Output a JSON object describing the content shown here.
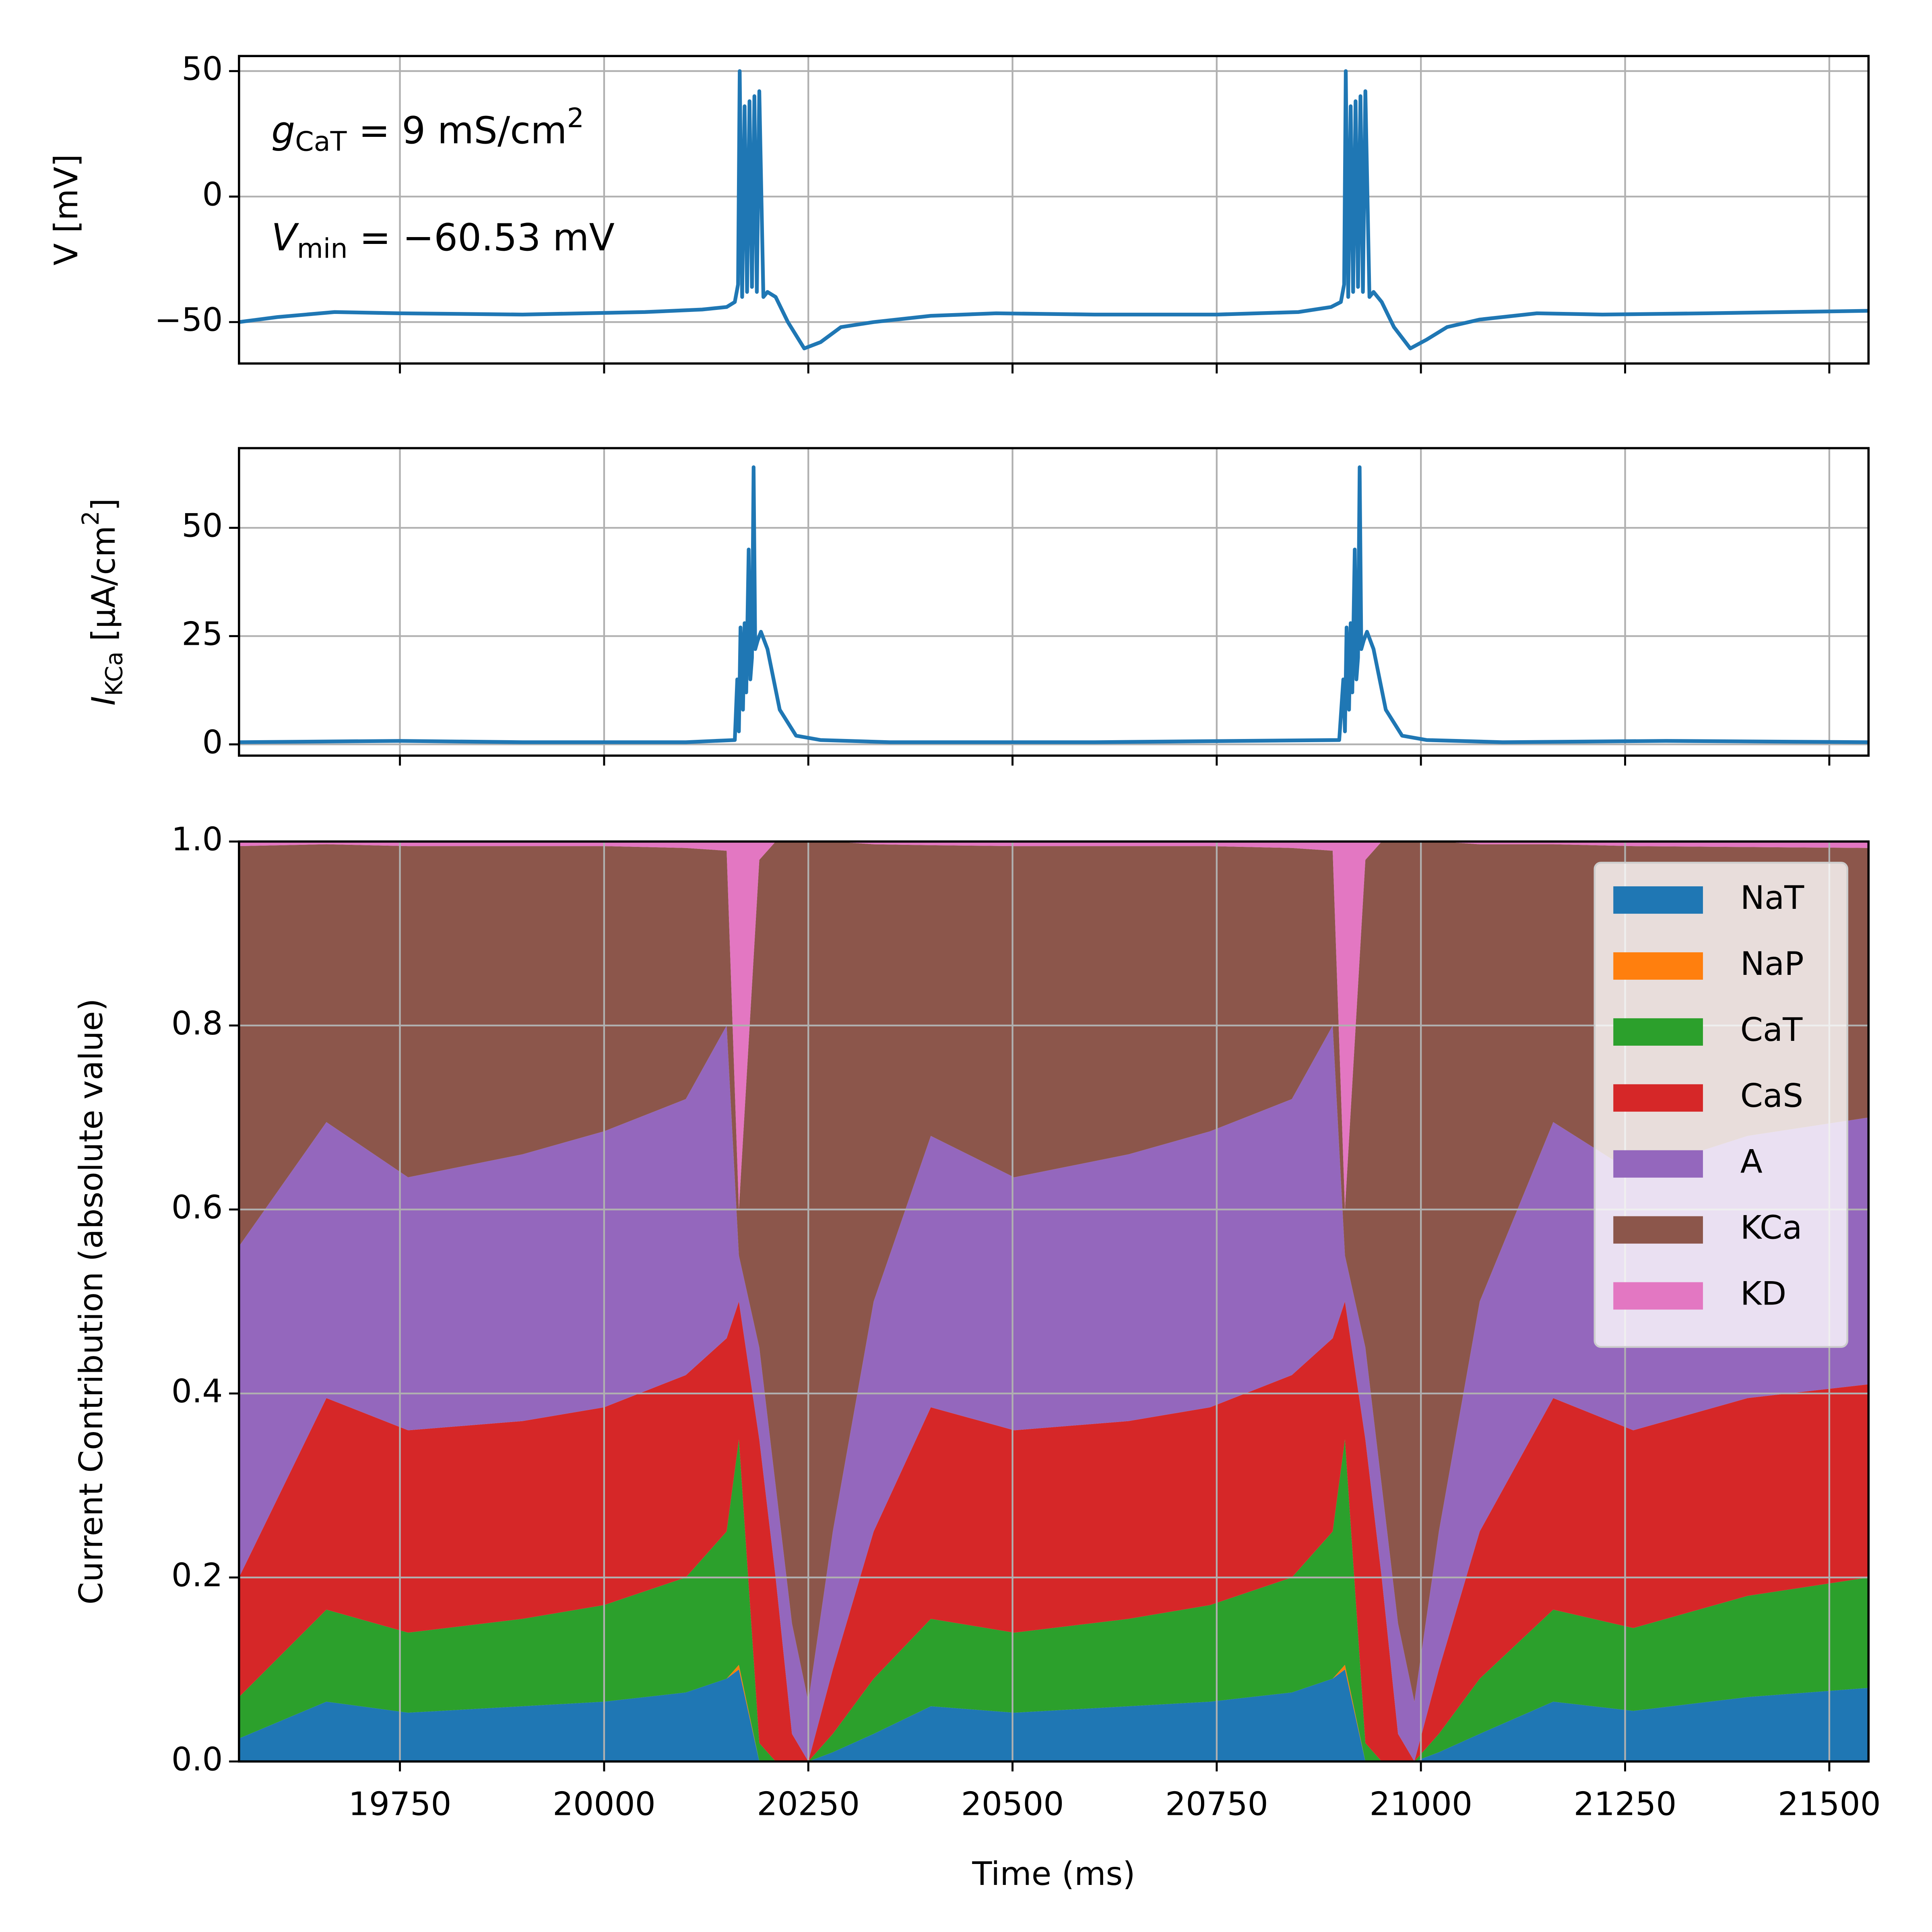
{
  "chart_data": [
    {
      "type": "line",
      "ylabel": "V [mV]",
      "color": "#1f77b4",
      "grid": true,
      "annotations": [
        [
          "g",
          "CaT",
          " = 9 mS/cm",
          "2"
        ],
        [
          "V",
          "min",
          " = −60.53 mV"
        ]
      ],
      "x": [
        19553,
        19600,
        19670,
        19750,
        19900,
        20050,
        20120,
        20150,
        20160,
        20164,
        20166,
        20169,
        20172,
        20175,
        20178,
        20181,
        20184,
        20187,
        20190,
        20195,
        20200,
        20210,
        20225,
        20245,
        20265,
        20290,
        20330,
        20400,
        20480,
        20600,
        20750,
        20850,
        20890,
        20902,
        20906,
        20908,
        20911,
        20914,
        20917,
        20920,
        20923,
        20926,
        20929,
        20932,
        20937,
        20942,
        20952,
        20967,
        20987,
        21007,
        21032,
        21072,
        21142,
        21222,
        21350,
        21548
      ],
      "values": [
        -50,
        -48,
        -46,
        -46.5,
        -47,
        -46,
        -45,
        -44,
        -42,
        -35,
        50,
        -40,
        36,
        -38,
        38,
        -36,
        40,
        -38,
        42,
        -40,
        -38,
        -40,
        -50,
        -60.5,
        -58,
        -52,
        -50,
        -47.5,
        -46.5,
        -47,
        -47,
        -46,
        -44,
        -42,
        -35,
        50,
        -40,
        36,
        -38,
        38,
        -36,
        40,
        -38,
        42,
        -40,
        -38,
        -42,
        -52,
        -60.5,
        -57,
        -52,
        -49,
        -46.5,
        -47,
        -46.5,
        -45.5
      ],
      "xlim": [
        19553,
        21548
      ],
      "xticks": [
        19750,
        20000,
        20250,
        20500,
        20750,
        21000,
        21250,
        21500
      ],
      "ylim": [
        -66.5,
        56
      ],
      "yticks": [
        {
          "value": -50,
          "label": "−50"
        },
        0,
        50
      ]
    },
    {
      "type": "line",
      "ylabel": [
        "I",
        "KCa",
        " [μA/cm",
        "2",
        "]"
      ],
      "color": "#1f77b4",
      "grid": true,
      "x": [
        19553,
        19750,
        19900,
        20100,
        20160,
        20163,
        20165,
        20167,
        20170,
        20172,
        20174,
        20177,
        20179,
        20181,
        20183,
        20185,
        20188,
        20192,
        20200,
        20215,
        20235,
        20265,
        20350,
        20600,
        20900,
        20905,
        20907,
        20909,
        20912,
        20914,
        20916,
        20919,
        20921,
        20923,
        20925,
        20927,
        20930,
        20934,
        20942,
        20957,
        20977,
        21007,
        21100,
        21300,
        21548
      ],
      "values": [
        0.5,
        0.8,
        0.5,
        0.5,
        1,
        15,
        3,
        27,
        8,
        28,
        12,
        45,
        15,
        20,
        64,
        22,
        24,
        26,
        22,
        8,
        2,
        1,
        0.5,
        0.5,
        1,
        15,
        3,
        27,
        8,
        28,
        12,
        45,
        15,
        20,
        64,
        22,
        24,
        26,
        22,
        8,
        2,
        1,
        0.5,
        0.8,
        0.5
      ],
      "xlim": [
        19553,
        21548
      ],
      "xticks": [
        19750,
        20000,
        20250,
        20500,
        20750,
        21000,
        21250,
        21500
      ],
      "ylim": [
        -2.6,
        68.4
      ],
      "yticks": [
        0,
        25,
        50
      ]
    },
    {
      "type": "stackedarea",
      "xlabel": "Time (ms)",
      "ylabel": "Current Contribution (absolute value)",
      "grid": true,
      "legend": "upper right",
      "x": [
        19553,
        19660,
        19760,
        19900,
        20000,
        20100,
        20150,
        20165,
        20190,
        20210,
        20230,
        20250,
        20280,
        20330,
        20400,
        20502,
        20642,
        20742,
        20842,
        20892,
        20907,
        20932,
        20952,
        20972,
        20992,
        21022,
        21072,
        21162,
        21260,
        21400,
        21548
      ],
      "series": [
        {
          "name": "NaT",
          "color": "#1f77b4",
          "values": [
            0.025,
            0.065,
            0.053,
            0.06,
            0.065,
            0.075,
            0.09,
            0.1,
            0,
            0,
            0,
            0,
            0.01,
            0.03,
            0.06,
            0.053,
            0.06,
            0.065,
            0.075,
            0.09,
            0.1,
            0,
            0,
            0,
            0,
            0.01,
            0.03,
            0.065,
            0.055,
            0.07,
            0.08
          ]
        },
        {
          "name": "NaP",
          "color": "#ff7f0e",
          "values": [
            0,
            0,
            0,
            0,
            0,
            0,
            0,
            0.005,
            0,
            0,
            0,
            0,
            0,
            0,
            0,
            0,
            0,
            0,
            0,
            0,
            0.005,
            0,
            0,
            0,
            0,
            0,
            0,
            0,
            0,
            0,
            0
          ]
        },
        {
          "name": "CaT",
          "color": "#2ca02c",
          "values": [
            0.045,
            0.1,
            0.087,
            0.095,
            0.105,
            0.125,
            0.16,
            0.245,
            0.02,
            0,
            0,
            0,
            0.02,
            0.06,
            0.095,
            0.087,
            0.095,
            0.105,
            0.125,
            0.16,
            0.245,
            0.02,
            0,
            0,
            0,
            0.02,
            0.06,
            0.1,
            0.09,
            0.11,
            0.12
          ]
        },
        {
          "name": "CaS",
          "color": "#d62728",
          "values": [
            0.13,
            0.23,
            0.22,
            0.215,
            0.215,
            0.22,
            0.21,
            0.15,
            0.33,
            0.2,
            0.03,
            0,
            0.07,
            0.16,
            0.23,
            0.22,
            0.215,
            0.215,
            0.22,
            0.21,
            0.15,
            0.33,
            0.2,
            0.03,
            0,
            0.07,
            0.16,
            0.23,
            0.215,
            0.215,
            0.21
          ]
        },
        {
          "name": "A",
          "color": "#9467bd",
          "values": [
            0.36,
            0.3,
            0.275,
            0.29,
            0.3,
            0.3,
            0.34,
            0.05,
            0.1,
            0.1,
            0.12,
            0.065,
            0.15,
            0.25,
            0.295,
            0.275,
            0.29,
            0.3,
            0.3,
            0.34,
            0.05,
            0.1,
            0.1,
            0.12,
            0.065,
            0.15,
            0.25,
            0.3,
            0.28,
            0.285,
            0.29
          ]
        },
        {
          "name": "KCa",
          "color": "#8c564b",
          "values": [
            0.435,
            0.302,
            0.36,
            0.335,
            0.31,
            0.273,
            0.19,
            0.05,
            0.53,
            0.7,
            0.85,
            0.935,
            0.75,
            0.497,
            0.316,
            0.36,
            0.335,
            0.31,
            0.273,
            0.19,
            0.05,
            0.53,
            0.7,
            0.85,
            0.935,
            0.75,
            0.497,
            0.302,
            0.355,
            0.314,
            0.293
          ]
        },
        {
          "name": "KD",
          "color": "#e377c2",
          "values": [
            0.005,
            0.003,
            0.005,
            0.005,
            0.005,
            0.007,
            0.01,
            0.4,
            0.02,
            0,
            0,
            0,
            0,
            0.003,
            0.004,
            0.005,
            0.005,
            0.005,
            0.007,
            0.01,
            0.4,
            0.02,
            0,
            0,
            0,
            0,
            0.003,
            0.003,
            0.005,
            0.006,
            0.007
          ]
        }
      ],
      "xlim": [
        19553,
        21548
      ],
      "xticks": [
        19750,
        20000,
        20250,
        20500,
        20750,
        21000,
        21250,
        21500
      ],
      "ylim": [
        0,
        1
      ],
      "yticks": [
        {
          "value": 0,
          "label": "0.0"
        },
        0.2,
        0.4,
        0.6,
        0.8,
        {
          "value": 1,
          "label": "1.0"
        }
      ]
    }
  ]
}
